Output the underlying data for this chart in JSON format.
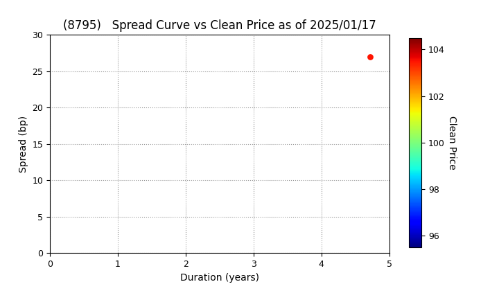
{
  "title": "(8795)   Spread Curve vs Clean Price as of 2025/01/17",
  "xlabel": "Duration (years)",
  "ylabel": "Spread (bp)",
  "colorbar_label": "Clean Price",
  "xlim": [
    0,
    5
  ],
  "ylim": [
    0,
    30
  ],
  "xticks": [
    0,
    1,
    2,
    3,
    4,
    5
  ],
  "yticks": [
    0,
    5,
    10,
    15,
    20,
    25,
    30
  ],
  "colorbar_min": 95.5,
  "colorbar_max": 104.5,
  "colorbar_ticks": [
    96,
    98,
    100,
    102,
    104
  ],
  "data_points": [
    {
      "duration": 4.72,
      "spread": 27.0,
      "clean_price": 103.5
    }
  ],
  "point_size": 40,
  "background_color": "#ffffff",
  "grid_color": "#999999",
  "title_fontsize": 12,
  "axis_label_fontsize": 10,
  "tick_fontsize": 9,
  "colorbar_label_fontsize": 10
}
